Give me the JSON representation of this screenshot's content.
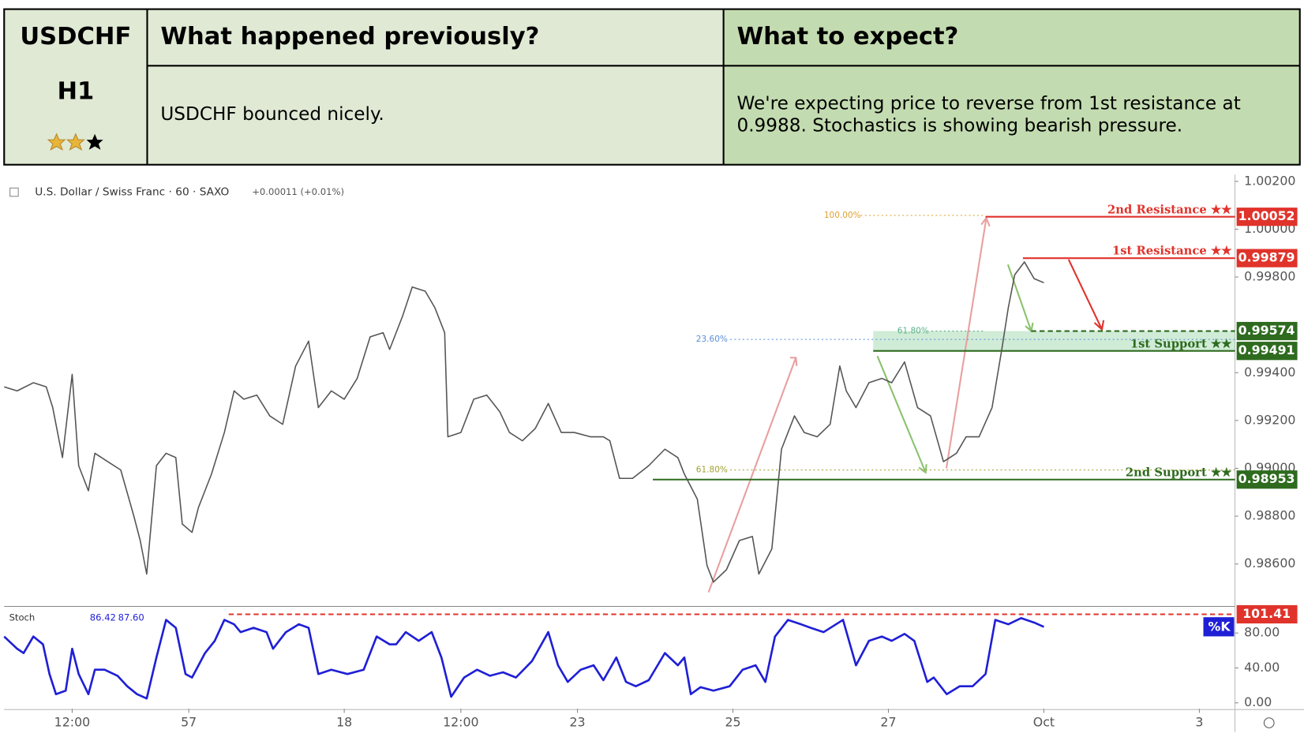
{
  "header": {
    "pair": "USDCHF",
    "timeframe": "H1",
    "previous_title": "What happened previously?",
    "previous_text": "USDCHF bounced nicely.",
    "expect_title": "What to expect?",
    "expect_lines": [
      "We're expecting price to reverse from 1st resistance at",
      "0.9988. Stochastics is showing bearish pressure."
    ]
  },
  "chart_data": [
    {
      "type": "line",
      "title": "U.S. Dollar / Swiss Franc · 60 · SAXO",
      "subtitle": "+0.00011 (+0.01%)",
      "xlim": [
        0,
        380
      ],
      "x": [
        0,
        4,
        9,
        13,
        15,
        18,
        21,
        23,
        26,
        28,
        32,
        36,
        40,
        42,
        44,
        47,
        50,
        53,
        55,
        58,
        60,
        64,
        68,
        71,
        74,
        78,
        82,
        86,
        90,
        94,
        97,
        101,
        105,
        109,
        113,
        117,
        119,
        123,
        126,
        130,
        133,
        136,
        137,
        141,
        145,
        149,
        153,
        156,
        160,
        164,
        168,
        172,
        176,
        181,
        185,
        187,
        190,
        194,
        199,
        204,
        208,
        210,
        214,
        217,
        219,
        223,
        227,
        231,
        233,
        237,
        240,
        244,
        247,
        251,
        255,
        258,
        260,
        263,
        267,
        271,
        274,
        278,
        282,
        286,
        290,
        294,
        297,
        301,
        305,
        308,
        310,
        312,
        315,
        318,
        321
      ],
      "series": [
        {
          "name": "USDCHF",
          "color": "#555555",
          "values": [
            0.99341,
            0.99324,
            0.99358,
            0.99341,
            0.99254,
            0.99045,
            0.99393,
            0.99011,
            0.98906,
            0.99063,
            0.99028,
            0.98993,
            0.98802,
            0.98698,
            0.98558,
            0.99011,
            0.99063,
            0.99045,
            0.98767,
            0.98732,
            0.98837,
            0.98976,
            0.9915,
            0.99324,
            0.99289,
            0.99306,
            0.99219,
            0.99184,
            0.99428,
            0.99532,
            0.99254,
            0.99324,
            0.99289,
            0.99376,
            0.9955,
            0.99567,
            0.99497,
            0.99637,
            0.99758,
            0.99741,
            0.99671,
            0.99567,
            0.99132,
            0.9915,
            0.99289,
            0.99306,
            0.99237,
            0.9915,
            0.99115,
            0.99167,
            0.99271,
            0.9915,
            0.9915,
            0.99132,
            0.99132,
            0.99115,
            0.98958,
            0.98958,
            0.99011,
            0.9908,
            0.99045,
            0.98976,
            0.98871,
            0.98593,
            0.98524,
            0.98576,
            0.98698,
            0.98715,
            0.98558,
            0.98663,
            0.9908,
            0.99219,
            0.9915,
            0.99132,
            0.99184,
            0.99428,
            0.99324,
            0.99254,
            0.99358,
            0.99376,
            0.99358,
            0.99445,
            0.99254,
            0.99219,
            0.99028,
            0.99063,
            0.99132,
            0.99132,
            0.99254,
            0.99497,
            0.99671,
            0.9981,
            0.99863,
            0.99793,
            0.99776
          ]
        }
      ],
      "ylim": [
        0.98426,
        1.00228
      ],
      "yticks": [
        {
          "value": 0.986,
          "label": "0.98600"
        },
        {
          "value": 0.988,
          "label": "0.98800"
        },
        {
          "value": 0.99,
          "label": "0.99000"
        },
        {
          "value": 0.992,
          "label": "0.99200"
        },
        {
          "value": 0.994,
          "label": "0.99400"
        },
        {
          "value": 0.998,
          "label": "0.99800"
        },
        {
          "value": 1.0,
          "label": "1.00000"
        },
        {
          "value": 1.002,
          "label": "1.00200"
        }
      ],
      "levels": [
        {
          "label": "2nd Resistance ★★",
          "value": 1.00052,
          "color": "#e0332b"
        },
        {
          "label": "1st Resistance ★★",
          "value": 0.99879,
          "color": "#e0332b"
        },
        {
          "label": "",
          "value": 0.99574,
          "color": "#2e6b1f"
        },
        {
          "label": "1st Support ★★",
          "value": 0.99491,
          "color": "#2e6b1f"
        },
        {
          "label": "2nd Support ★★",
          "value": 0.98953,
          "color": "#2e6b1f"
        }
      ],
      "fib_labels": [
        "100.00%",
        "23.60%",
        "61.80%",
        "61.80%"
      ]
    },
    {
      "type": "line",
      "title": "Stoch",
      "legend_values": [
        "86.42",
        "87.60"
      ],
      "xlim": [
        0,
        380
      ],
      "xticks": [
        {
          "value": 21,
          "label": "12:00"
        },
        57,
        {
          "value": 105,
          "label": "18"
        },
        {
          "value": 141,
          "label": "12:00"
        },
        {
          "value": 177,
          "label": "23"
        },
        {
          "value": 225,
          "label": "25"
        },
        {
          "value": 273,
          "label": "27"
        },
        {
          "value": 321,
          "label": "Oct"
        },
        {
          "value": 369,
          "label": "3"
        }
      ],
      "x": [
        0,
        4,
        6,
        9,
        12,
        14,
        16,
        19,
        21,
        23,
        26,
        28,
        31,
        35,
        38,
        41,
        44,
        47,
        50,
        53,
        56,
        58,
        62,
        65,
        68,
        71,
        73,
        77,
        81,
        83,
        87,
        91,
        94,
        97,
        101,
        106,
        111,
        115,
        119,
        121,
        124,
        128,
        132,
        135,
        138,
        142,
        146,
        150,
        154,
        158,
        163,
        168,
        171,
        174,
        178,
        182,
        185,
        189,
        192,
        195,
        199,
        204,
        208,
        210,
        212,
        215,
        219,
        224,
        228,
        232,
        235,
        238,
        242,
        246,
        249,
        253,
        259,
        263,
        267,
        271,
        274,
        278,
        281,
        285,
        287,
        291,
        295,
        299,
        303,
        306,
        310,
        314,
        318,
        321
      ],
      "series": [
        {
          "name": "%K",
          "color": "#1f1fd6",
          "values": [
            76,
            62,
            57,
            76,
            67,
            33,
            10,
            14,
            62,
            33,
            10,
            38,
            38,
            31,
            19,
            10,
            5,
            52,
            95,
            86,
            33,
            29,
            57,
            71,
            95,
            90,
            81,
            86,
            81,
            62,
            81,
            90,
            86,
            33,
            38,
            33,
            38,
            76,
            67,
            67,
            81,
            71,
            81,
            52,
            7,
            29,
            38,
            31,
            35,
            29,
            48,
            81,
            43,
            24,
            38,
            43,
            26,
            52,
            24,
            19,
            26,
            57,
            43,
            52,
            10,
            18,
            14,
            19,
            38,
            43,
            24,
            76,
            95,
            90,
            86,
            81,
            95,
            43,
            71,
            76,
            71,
            79,
            71,
            24,
            29,
            10,
            19,
            19,
            33,
            95,
            90,
            97,
            92,
            87
          ]
        }
      ],
      "ylim": [
        -6.7,
        109.5
      ],
      "yticks": [
        {
          "value": 0,
          "label": "0.00"
        },
        {
          "value": 40,
          "label": "40.00"
        },
        {
          "value": 80,
          "label": "80.00"
        }
      ],
      "levels": [
        {
          "label": "",
          "value": 101.41,
          "color": "#e0332b"
        }
      ]
    }
  ]
}
